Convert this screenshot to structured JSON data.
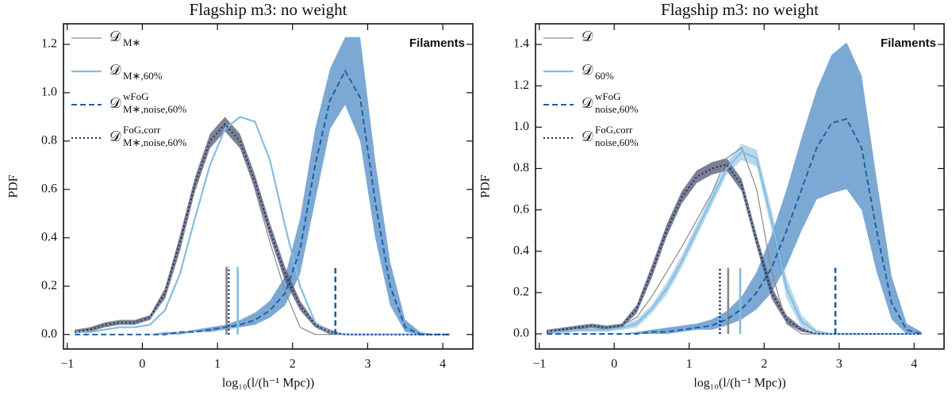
{
  "chart_data": [
    {
      "type": "line",
      "title": "Flagship m3: no weight",
      "xlabel": "log₁₀(l/(h⁻¹ Mpc))",
      "ylabel": "PDF",
      "annotation": "Filaments",
      "x": [
        -0.9,
        -0.7,
        -0.5,
        -0.3,
        -0.1,
        0.1,
        0.3,
        0.5,
        0.7,
        0.9,
        1.1,
        1.3,
        1.5,
        1.7,
        1.9,
        2.1,
        2.3,
        2.5,
        2.7,
        2.9,
        3.1,
        3.3,
        3.5,
        3.7,
        3.9,
        4.1
      ],
      "xlim": [
        -1.05,
        4.4
      ],
      "ylim": [
        -0.06,
        1.285
      ],
      "xticks": [
        {
          "value": -1,
          "label": "−1"
        },
        0,
        1,
        2,
        3,
        4
      ],
      "yticks": [
        {
          "value": 0,
          "label": "0.0"
        },
        {
          "value": 0.2,
          "label": "0.2"
        },
        {
          "value": 0.4,
          "label": "0.4"
        },
        {
          "value": 0.6,
          "label": "0.6"
        },
        {
          "value": 0.8,
          "label": "0.8"
        },
        {
          "value": 1.0,
          "label": "1.0"
        },
        {
          "value": 1.2,
          "label": "1.2"
        }
      ],
      "median_top": 0.28,
      "series": [
        {
          "name": "𝒟",
          "sub": "M∗",
          "color": "#8a8a8a",
          "style": "solid",
          "width": 1.2,
          "median": 1.12,
          "values": [
            0.01,
            0.02,
            0.04,
            0.05,
            0.05,
            0.07,
            0.15,
            0.35,
            0.6,
            0.82,
            0.88,
            0.8,
            0.6,
            0.38,
            0.18,
            0.03,
            0,
            0,
            0,
            0,
            0,
            0,
            0,
            0,
            0,
            0
          ]
        },
        {
          "name": "𝒟",
          "sub": "M∗,60%",
          "color": "#86bde0",
          "style": "solid",
          "width": 2.2,
          "median": 1.27,
          "values": [
            0.01,
            0.01,
            0.02,
            0.03,
            0.03,
            0.04,
            0.1,
            0.25,
            0.48,
            0.7,
            0.85,
            0.9,
            0.88,
            0.72,
            0.45,
            0.2,
            0.05,
            0.01,
            0,
            0,
            0,
            0,
            0,
            0,
            0,
            0
          ]
        },
        {
          "name": "𝒟",
          "sup": "wFoG",
          "sub": "M∗,noise,60%",
          "color": "#1f5fa3",
          "band_color": "#5b93c9",
          "style": "dashed",
          "width": 2,
          "median": 2.57,
          "values": [
            0,
            0,
            0,
            0,
            0,
            0,
            0,
            0.01,
            0.01,
            0.02,
            0.03,
            0.04,
            0.06,
            0.1,
            0.17,
            0.35,
            0.7,
            0.97,
            1.09,
            0.98,
            0.55,
            0.2,
            0.03,
            0,
            0,
            0
          ],
          "upper": [
            0,
            0,
            0,
            0,
            0,
            0,
            0.01,
            0.01,
            0.02,
            0.03,
            0.04,
            0.06,
            0.09,
            0.14,
            0.24,
            0.48,
            0.85,
            1.1,
            1.23,
            1.23,
            0.72,
            0.3,
            0.06,
            0.01,
            0,
            0
          ],
          "lower": [
            0,
            0,
            0,
            0,
            0,
            0,
            0,
            0,
            0.01,
            0.01,
            0.02,
            0.03,
            0.04,
            0.07,
            0.12,
            0.25,
            0.55,
            0.85,
            0.95,
            0.8,
            0.4,
            0.12,
            0.01,
            0,
            0,
            0
          ]
        },
        {
          "name": "𝒟",
          "sup": "FoG,corr",
          "sub": "M∗,noise,60%",
          "color": "#1b2f6e",
          "band_color": "#5a6078",
          "style": "dotted",
          "width": 2,
          "median": 1.15,
          "values": [
            0.01,
            0.02,
            0.04,
            0.05,
            0.05,
            0.07,
            0.17,
            0.38,
            0.62,
            0.8,
            0.87,
            0.8,
            0.63,
            0.43,
            0.25,
            0.12,
            0.04,
            0.01,
            0,
            0,
            0,
            0,
            0,
            0,
            0,
            0
          ],
          "upper": [
            0.02,
            0.03,
            0.05,
            0.06,
            0.06,
            0.08,
            0.19,
            0.41,
            0.65,
            0.83,
            0.9,
            0.83,
            0.66,
            0.46,
            0.28,
            0.14,
            0.05,
            0.02,
            0,
            0,
            0,
            0,
            0,
            0,
            0,
            0
          ],
          "lower": [
            0.01,
            0.01,
            0.03,
            0.04,
            0.04,
            0.06,
            0.15,
            0.35,
            0.59,
            0.77,
            0.84,
            0.77,
            0.6,
            0.4,
            0.22,
            0.1,
            0.03,
            0,
            0,
            0,
            0,
            0,
            0,
            0,
            0,
            0
          ]
        }
      ]
    },
    {
      "type": "line",
      "title": "Flagship m3: no weight",
      "xlabel": "log₁₀(l/(h⁻¹ Mpc))",
      "ylabel": "PDF",
      "annotation": "Filaments",
      "x": [
        -0.9,
        -0.7,
        -0.5,
        -0.3,
        -0.1,
        0.1,
        0.3,
        0.5,
        0.7,
        0.9,
        1.1,
        1.3,
        1.5,
        1.7,
        1.9,
        2.1,
        2.3,
        2.5,
        2.7,
        2.9,
        3.1,
        3.3,
        3.5,
        3.7,
        3.9,
        4.1
      ],
      "xlim": [
        -1.05,
        4.4
      ],
      "ylim": [
        -0.073,
        1.5
      ],
      "xticks": [
        {
          "value": -1,
          "label": "−1"
        },
        0,
        1,
        2,
        3,
        4
      ],
      "yticks": [
        {
          "value": 0,
          "label": "0.0"
        },
        {
          "value": 0.2,
          "label": "0.2"
        },
        {
          "value": 0.4,
          "label": "0.4"
        },
        {
          "value": 0.6,
          "label": "0.6"
        },
        {
          "value": 0.8,
          "label": "0.8"
        },
        {
          "value": 1.0,
          "label": "1.0"
        },
        {
          "value": 1.2,
          "label": "1.2"
        },
        {
          "value": 1.4,
          "label": "1.4"
        }
      ],
      "median_top": 0.32,
      "series": [
        {
          "name": "𝒟",
          "color": "#8a8a8a",
          "style": "solid",
          "width": 1.2,
          "median": 1.52,
          "values": [
            0.01,
            0.02,
            0.03,
            0.04,
            0.03,
            0.04,
            0.08,
            0.18,
            0.3,
            0.42,
            0.55,
            0.68,
            0.85,
            0.9,
            0.7,
            0.3,
            0.05,
            0,
            0,
            0,
            0,
            0,
            0,
            0,
            0,
            0
          ]
        },
        {
          "name": "𝒟",
          "sub": "60%",
          "color": "#86bde0",
          "band_color": "#a9d0ea",
          "style": "solid",
          "width": 2.2,
          "median": 1.68,
          "values": [
            0.01,
            0.01,
            0.02,
            0.02,
            0.02,
            0.03,
            0.05,
            0.12,
            0.22,
            0.35,
            0.5,
            0.65,
            0.8,
            0.88,
            0.85,
            0.55,
            0.22,
            0.06,
            0.01,
            0,
            0,
            0,
            0,
            0,
            0,
            0
          ],
          "upper": [
            0.02,
            0.02,
            0.03,
            0.03,
            0.03,
            0.04,
            0.07,
            0.14,
            0.25,
            0.38,
            0.53,
            0.68,
            0.83,
            0.92,
            0.89,
            0.6,
            0.27,
            0.09,
            0.02,
            0,
            0,
            0,
            0,
            0,
            0,
            0
          ],
          "lower": [
            0,
            0,
            0.01,
            0.01,
            0.01,
            0.02,
            0.03,
            0.1,
            0.19,
            0.32,
            0.47,
            0.62,
            0.77,
            0.84,
            0.81,
            0.5,
            0.17,
            0.03,
            0,
            0,
            0,
            0,
            0,
            0,
            0,
            0
          ]
        },
        {
          "name": "𝒟",
          "sup": "wFoG",
          "sub": "noise,60%",
          "color": "#1f5fa3",
          "band_color": "#5b93c9",
          "style": "dashed",
          "width": 2,
          "median": 2.95,
          "values": [
            0,
            0,
            0,
            0,
            0,
            0,
            0,
            0.01,
            0.01,
            0.02,
            0.03,
            0.04,
            0.07,
            0.12,
            0.2,
            0.32,
            0.5,
            0.7,
            0.9,
            1.02,
            1.04,
            0.9,
            0.5,
            0.15,
            0.02,
            0
          ],
          "upper": [
            0,
            0,
            0,
            0,
            0,
            0,
            0.01,
            0.02,
            0.03,
            0.04,
            0.05,
            0.07,
            0.11,
            0.18,
            0.3,
            0.48,
            0.7,
            0.95,
            1.18,
            1.35,
            1.41,
            1.25,
            0.75,
            0.28,
            0.05,
            0.01
          ],
          "lower": [
            0,
            0,
            0,
            0,
            0,
            0,
            0,
            0,
            0,
            0.01,
            0.02,
            0.02,
            0.04,
            0.07,
            0.12,
            0.2,
            0.33,
            0.5,
            0.65,
            0.68,
            0.7,
            0.6,
            0.3,
            0.07,
            0,
            0
          ]
        },
        {
          "name": "𝒟",
          "sup": "FoG,corr",
          "sub": "noise,60%",
          "color": "#1b2f6e",
          "band_color": "#5a6078",
          "style": "dotted",
          "width": 2,
          "median": 1.41,
          "values": [
            0.01,
            0.02,
            0.03,
            0.04,
            0.03,
            0.04,
            0.12,
            0.3,
            0.5,
            0.66,
            0.76,
            0.8,
            0.82,
            0.72,
            0.45,
            0.2,
            0.07,
            0.02,
            0,
            0,
            0,
            0,
            0,
            0,
            0,
            0
          ],
          "upper": [
            0.02,
            0.03,
            0.04,
            0.05,
            0.04,
            0.05,
            0.14,
            0.33,
            0.53,
            0.69,
            0.79,
            0.83,
            0.85,
            0.75,
            0.48,
            0.23,
            0.09,
            0.03,
            0,
            0,
            0,
            0,
            0,
            0,
            0,
            0
          ],
          "lower": [
            0,
            0.01,
            0.02,
            0.03,
            0.02,
            0.03,
            0.1,
            0.27,
            0.47,
            0.63,
            0.73,
            0.77,
            0.79,
            0.69,
            0.42,
            0.17,
            0.05,
            0.01,
            0,
            0,
            0,
            0,
            0,
            0,
            0,
            0
          ]
        }
      ]
    }
  ]
}
